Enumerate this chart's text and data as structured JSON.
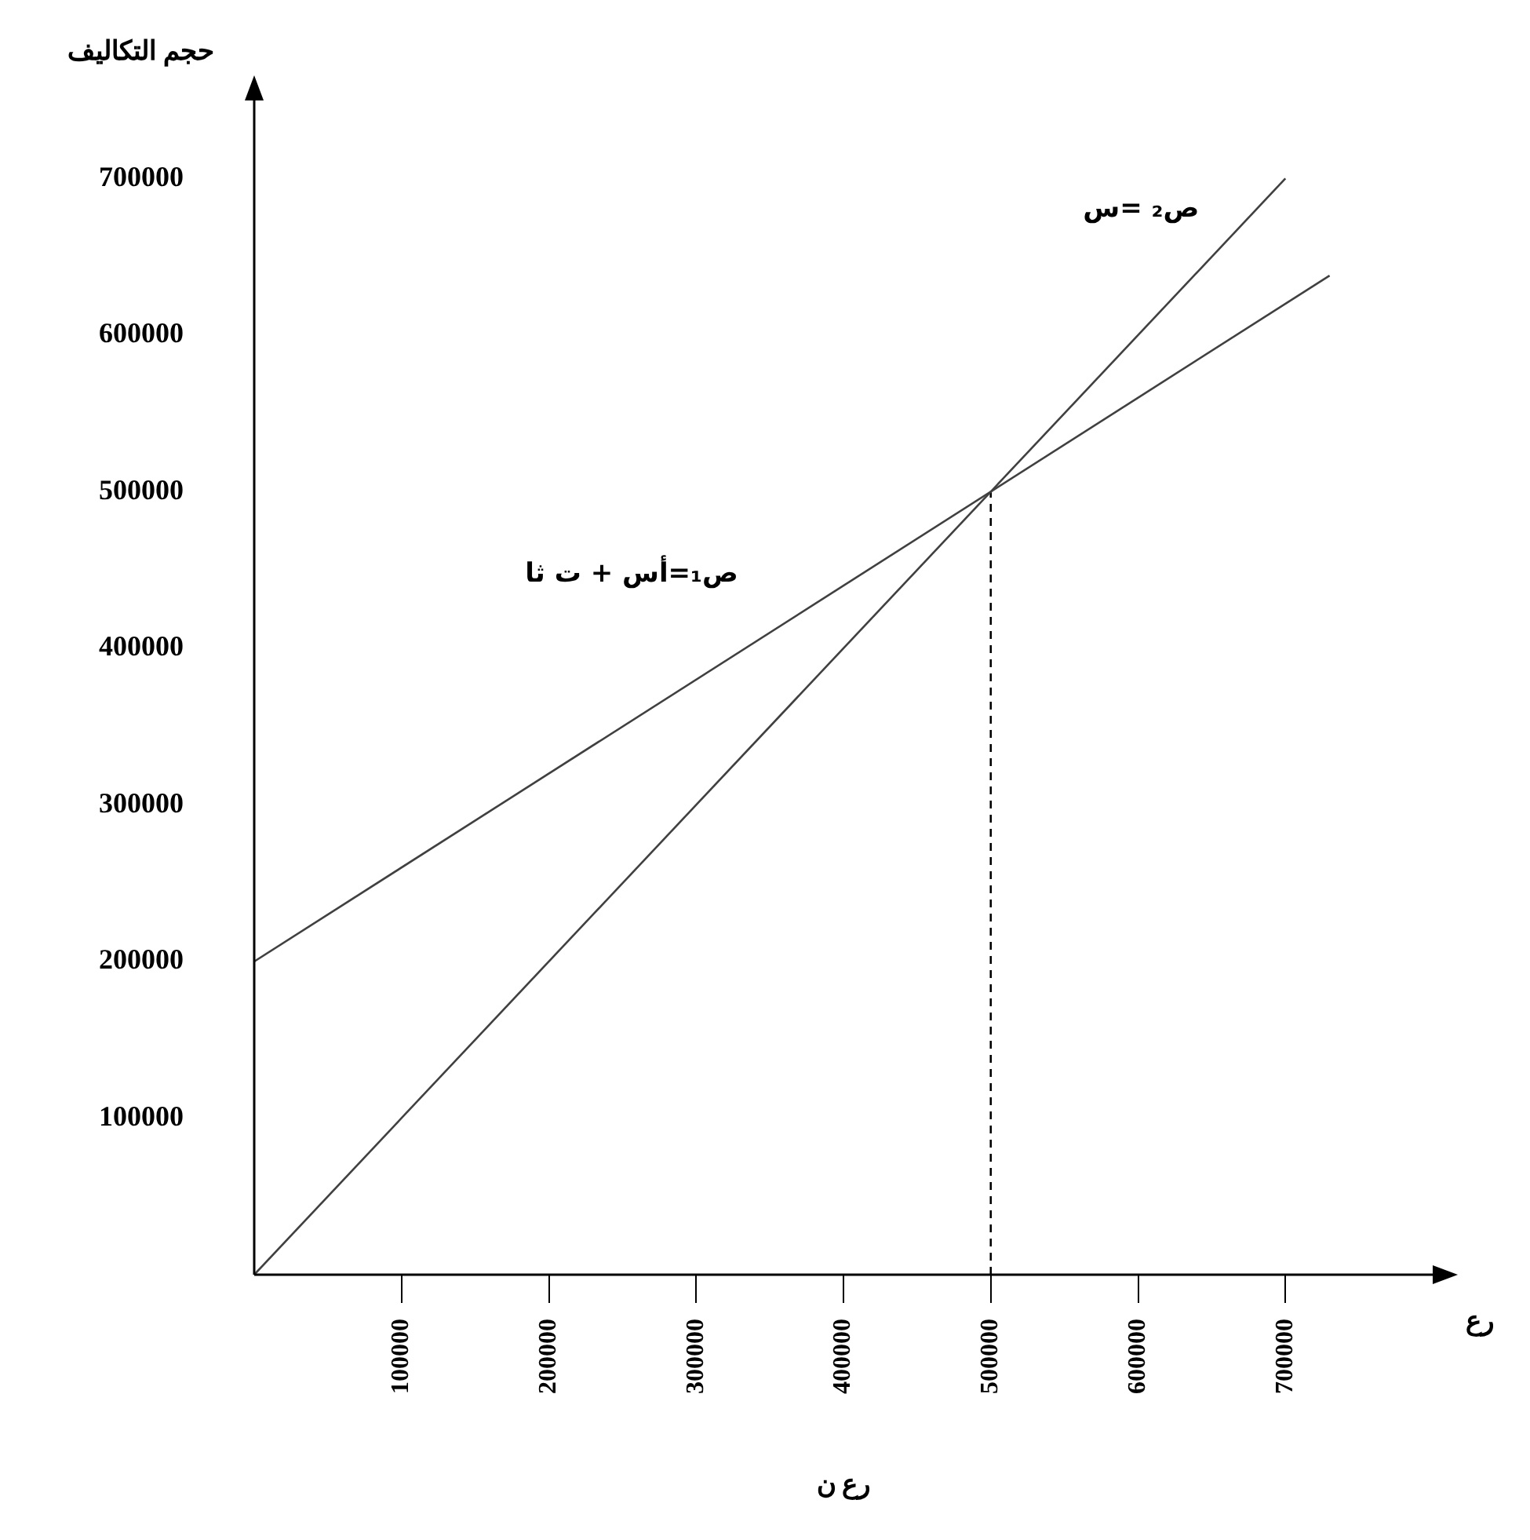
{
  "chart_data": {
    "type": "line",
    "xlabel": "رع",
    "ylabel": "حجم التكاليف",
    "annotations": [
      "رع ن"
    ],
    "xlim": [
      0,
      800000
    ],
    "ylim": [
      0,
      750000
    ],
    "xticks": [
      100000,
      200000,
      300000,
      400000,
      500000,
      600000,
      700000
    ],
    "yticks": [
      100000,
      200000,
      300000,
      400000,
      500000,
      600000,
      700000
    ],
    "grid": false,
    "legend": false,
    "marker": "none",
    "series": [
      {
        "name": "ص₂ =س",
        "color": "#404040",
        "x": [
          0,
          700000
        ],
        "values": [
          0,
          700000
        ],
        "line_style": "solid"
      },
      {
        "name": "ص₁=أس + ت ثا",
        "color": "#404040",
        "x": [
          0,
          730000
        ],
        "values": [
          200000,
          638000
        ],
        "line_style": "solid"
      },
      {
        "color": "#000000",
        "x": [
          500000,
          500000
        ],
        "values": [
          0,
          500000
        ],
        "line_style": "dashed"
      }
    ]
  }
}
